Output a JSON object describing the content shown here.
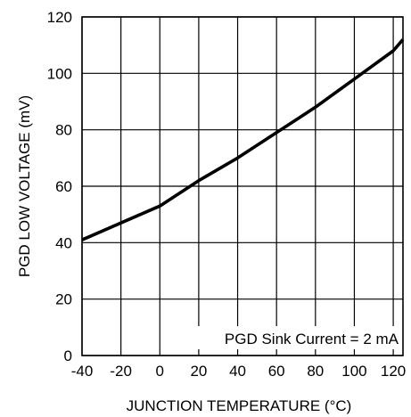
{
  "chart_data": {
    "type": "line",
    "title": "",
    "xlabel": "JUNCTION TEMPERATURE (°C)",
    "ylabel": "PGD LOW VOLTAGE (mV)",
    "xlim": [
      -40,
      125
    ],
    "ylim": [
      0,
      120
    ],
    "x_ticks": [
      -40,
      -20,
      0,
      20,
      40,
      60,
      80,
      100,
      120
    ],
    "y_ticks": [
      0,
      20,
      40,
      60,
      80,
      100,
      120
    ],
    "x_tick_labels": [
      "-40",
      "-20",
      "0",
      "20",
      "40",
      "60",
      "80",
      "100",
      "120"
    ],
    "y_tick_labels": [
      "0",
      "20",
      "40",
      "60",
      "80",
      "100",
      "120"
    ],
    "grid": true,
    "annotation": "PGD Sink Current = 2 mA",
    "series": [
      {
        "x": [
          -40,
          -20,
          0,
          20,
          40,
          60,
          80,
          100,
          120,
          125
        ],
        "y": [
          41,
          47,
          53,
          62,
          70,
          79,
          88,
          98,
          108,
          112
        ]
      }
    ]
  }
}
